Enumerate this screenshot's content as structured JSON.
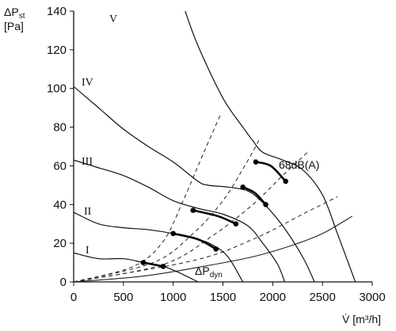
{
  "chart_data": {
    "type": "line",
    "ylabel": "ΔP",
    "ylabel_sub": "st",
    "ylabel_unit": "[Pa]",
    "xlabel": "V̇ [m³/h]",
    "xlim": [
      0,
      3000
    ],
    "ylim": [
      0,
      140
    ],
    "x_ticks": [
      "0",
      "500",
      "1000",
      "1500",
      "2000",
      "2500",
      "3000"
    ],
    "y_ticks": [
      "0",
      "20",
      "40",
      "60",
      "80",
      "100",
      "120",
      "140"
    ],
    "grid": false,
    "pressure_curves": [
      {
        "name": "V",
        "points": [
          [
            1120,
            140
          ],
          [
            1250,
            122
          ],
          [
            1500,
            95
          ],
          [
            1700,
            80
          ],
          [
            1800,
            73
          ],
          [
            1900,
            67
          ],
          [
            2100,
            63
          ],
          [
            2300,
            58
          ],
          [
            2500,
            45
          ],
          [
            2650,
            25
          ],
          [
            2830,
            0
          ]
        ]
      },
      {
        "name": "IV",
        "points": [
          [
            0,
            101
          ],
          [
            250,
            90
          ],
          [
            500,
            79
          ],
          [
            750,
            70
          ],
          [
            1000,
            62
          ],
          [
            1250,
            52
          ],
          [
            1350,
            50
          ],
          [
            1550,
            49
          ],
          [
            1750,
            47
          ],
          [
            1900,
            41
          ],
          [
            2100,
            29
          ],
          [
            2300,
            13
          ],
          [
            2420,
            0
          ]
        ]
      },
      {
        "name": "III",
        "points": [
          [
            0,
            63
          ],
          [
            250,
            59
          ],
          [
            500,
            55
          ],
          [
            750,
            49
          ],
          [
            1000,
            42
          ],
          [
            1250,
            38
          ],
          [
            1500,
            35
          ],
          [
            1750,
            29
          ],
          [
            1900,
            20
          ],
          [
            2050,
            9
          ],
          [
            2120,
            0
          ]
        ]
      },
      {
        "name": "II",
        "points": [
          [
            0,
            36
          ],
          [
            250,
            30
          ],
          [
            500,
            28
          ],
          [
            750,
            27
          ],
          [
            1000,
            25
          ],
          [
            1250,
            22
          ],
          [
            1400,
            19
          ],
          [
            1550,
            13
          ],
          [
            1700,
            0
          ]
        ]
      },
      {
        "name": "I",
        "points": [
          [
            0,
            15
          ],
          [
            250,
            12
          ],
          [
            500,
            12
          ],
          [
            700,
            10
          ],
          [
            900,
            8
          ],
          [
            1050,
            5
          ],
          [
            1250,
            0
          ]
        ]
      }
    ],
    "system_curves": [
      {
        "points": [
          [
            0,
            0
          ],
          [
            600,
            8
          ],
          [
            900,
            21
          ],
          [
            1100,
            42
          ],
          [
            1300,
            66
          ],
          [
            1480,
            87
          ]
        ]
      },
      {
        "points": [
          [
            0,
            0
          ],
          [
            800,
            10
          ],
          [
            1200,
            25
          ],
          [
            1500,
            42
          ],
          [
            1730,
            61
          ],
          [
            1870,
            74
          ]
        ]
      },
      {
        "points": [
          [
            0,
            0
          ],
          [
            900,
            9
          ],
          [
            1400,
            24
          ],
          [
            1800,
            40
          ],
          [
            2100,
            55
          ],
          [
            2370,
            68
          ]
        ]
      },
      {
        "points": [
          [
            0,
            0
          ],
          [
            1200,
            11
          ],
          [
            1800,
            22
          ],
          [
            2300,
            35
          ],
          [
            2650,
            44
          ]
        ]
      }
    ],
    "dynamic_pressure": {
      "label": "ΔP",
      "label_sub": "dyn",
      "points": [
        [
          0,
          0
        ],
        [
          700,
          3
        ],
        [
          1300,
          8
        ],
        [
          1800,
          13
        ],
        [
          2200,
          19
        ],
        [
          2500,
          25
        ],
        [
          2800,
          34
        ]
      ]
    },
    "noise_level": {
      "label": "68dB(A)",
      "segments": [
        [
          [
            700,
            10
          ],
          [
            900,
            8
          ]
        ],
        [
          [
            1000,
            25
          ],
          [
            1250,
            22
          ],
          [
            1430,
            17
          ]
        ],
        [
          [
            1200,
            37
          ],
          [
            1450,
            34
          ],
          [
            1630,
            30
          ]
        ],
        [
          [
            1700,
            49
          ],
          [
            1820,
            46
          ],
          [
            1930,
            40
          ]
        ],
        [
          [
            1830,
            62
          ],
          [
            1980,
            60
          ],
          [
            2130,
            52
          ]
        ]
      ]
    },
    "curve_labels": [
      "V",
      "IV",
      "III",
      "II",
      "I"
    ]
  }
}
